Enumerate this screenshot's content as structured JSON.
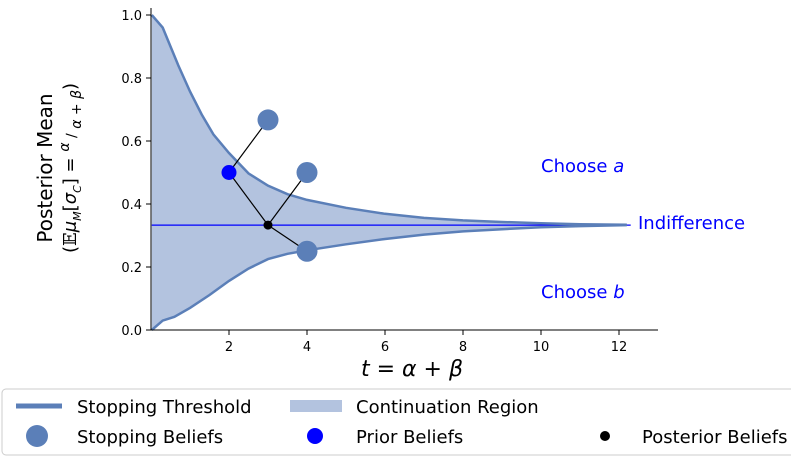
{
  "chart_data": {
    "type": "area",
    "xlabel": "t = α + β",
    "ylabel_line1": "Posterior Mean",
    "ylabel_line2": "(𝔼μM[σC] = α/(α+β))",
    "xlim": [
      0,
      13
    ],
    "ylim": [
      0,
      1
    ],
    "x_ticks": [
      2,
      4,
      6,
      8,
      10,
      12
    ],
    "y_ticks": [
      0.0,
      0.2,
      0.4,
      0.6,
      0.8,
      1.0
    ],
    "x_tick_labels": [
      "2",
      "4",
      "6",
      "8",
      "10",
      "12"
    ],
    "y_tick_labels": [
      "0.0",
      "0.2",
      "0.4",
      "0.6",
      "0.8",
      "1.0"
    ],
    "indifference_level": 0.333,
    "upper_threshold": [
      [
        0.02,
        1.0
      ],
      [
        0.3,
        0.96
      ],
      [
        0.5,
        0.9
      ],
      [
        0.7,
        0.84
      ],
      [
        1.0,
        0.757
      ],
      [
        1.3,
        0.684
      ],
      [
        1.6,
        0.621
      ],
      [
        2.0,
        0.562
      ],
      [
        2.5,
        0.497
      ],
      [
        3.0,
        0.458
      ],
      [
        3.5,
        0.431
      ],
      [
        4.0,
        0.413
      ],
      [
        5.0,
        0.388
      ],
      [
        6.0,
        0.369
      ],
      [
        7.0,
        0.356
      ],
      [
        8.0,
        0.348
      ],
      [
        9.0,
        0.343
      ],
      [
        10.0,
        0.339
      ],
      [
        11.0,
        0.336
      ],
      [
        12.2,
        0.334
      ]
    ],
    "lower_threshold": [
      [
        0.02,
        0.0
      ],
      [
        0.3,
        0.03
      ],
      [
        0.6,
        0.042
      ],
      [
        1.0,
        0.07
      ],
      [
        1.5,
        0.111
      ],
      [
        2.0,
        0.156
      ],
      [
        2.5,
        0.195
      ],
      [
        3.0,
        0.225
      ],
      [
        3.5,
        0.242
      ],
      [
        4.0,
        0.253
      ],
      [
        5.0,
        0.272
      ],
      [
        6.0,
        0.289
      ],
      [
        7.0,
        0.303
      ],
      [
        8.0,
        0.313
      ],
      [
        9.0,
        0.32
      ],
      [
        10.0,
        0.326
      ],
      [
        11.0,
        0.33
      ],
      [
        12.2,
        0.333
      ]
    ],
    "stopping_beliefs": [
      [
        3.0,
        0.667
      ],
      [
        4.0,
        0.5
      ],
      [
        4.0,
        0.25
      ]
    ],
    "prior_beliefs": [
      [
        2.0,
        0.5
      ]
    ],
    "posterior_beliefs": [
      [
        3.0,
        0.333
      ]
    ],
    "connectors": [
      [
        [
          2.0,
          0.5
        ],
        [
          3.0,
          0.667
        ]
      ],
      [
        [
          2.0,
          0.5
        ],
        [
          3.0,
          0.333
        ]
      ],
      [
        [
          3.0,
          0.333
        ],
        [
          4.0,
          0.5
        ]
      ],
      [
        [
          3.0,
          0.333
        ],
        [
          4.0,
          0.25
        ]
      ]
    ],
    "annotations": {
      "choose_a_prefix": "Choose ",
      "choose_a_var": "a",
      "choose_b_prefix": "Choose ",
      "choose_b_var": "b",
      "indifference": "Indifference"
    },
    "legend": {
      "placement": "bottom",
      "stopping_threshold": "Stopping Threshold",
      "continuation_region": "Continuation Region",
      "stopping_beliefs": "Stopping Beliefs",
      "prior_beliefs": "Prior Beliefs",
      "posterior_beliefs": "Posterior Beliefs"
    },
    "colors": {
      "threshold": "#5b7fb8",
      "region": "#b3c3df",
      "stopping": "#5b7fb8",
      "prior": "#0000ff",
      "posterior": "#000000",
      "indifference_line": "#0000ff",
      "annotation_text": "#0000ff"
    }
  }
}
